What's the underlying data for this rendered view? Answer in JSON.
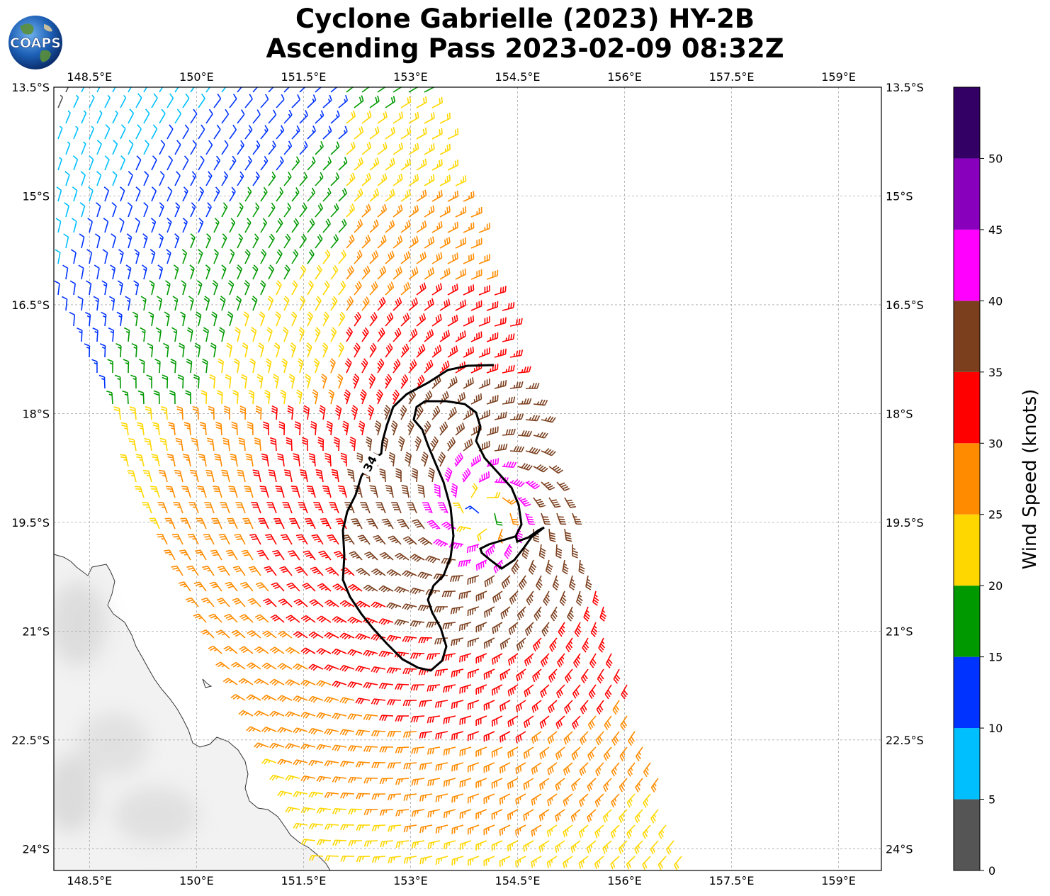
{
  "title": {
    "line1": "Cyclone Gabrielle (2023) HY-2B",
    "line2": "Ascending Pass 2023-02-09 08:32Z"
  },
  "logo": {
    "text": "COAPS",
    "icon": "globe-logo-icon"
  },
  "map": {
    "lon_range": [
      148.0,
      159.6
    ],
    "lat_range": [
      -24.3,
      -13.5
    ],
    "lon_ticks": [
      "148.5°E",
      "150°E",
      "151.5°E",
      "153°E",
      "154.5°E",
      "156°E",
      "157.5°E",
      "159°E"
    ],
    "lon_tick_values": [
      148.5,
      150,
      151.5,
      153,
      154.5,
      156,
      157.5,
      159
    ],
    "lat_ticks": [
      "13.5°S",
      "15°S",
      "16.5°S",
      "18°S",
      "19.5°S",
      "21°S",
      "22.5°S",
      "24°S"
    ],
    "lat_tick_values": [
      -13.5,
      -15,
      -16.5,
      -18,
      -19.5,
      -21,
      -22.5,
      -24
    ],
    "grid": true,
    "gridline_style": "dashed",
    "contour_label": "34",
    "storm_center": {
      "lon": 154.0,
      "lat": -19.35
    }
  },
  "colorbar": {
    "label": "Wind Speed (knots)",
    "tick_labels": [
      "0",
      "5",
      "10",
      "15",
      "20",
      "25",
      "30",
      "35",
      "40",
      "45",
      "50"
    ],
    "bounds": [
      0,
      5,
      10,
      15,
      20,
      25,
      30,
      35,
      40,
      45,
      50,
      55
    ],
    "colors": [
      "#555555",
      "#00bfff",
      "#0033ff",
      "#009900",
      "#ffd700",
      "#ff8c00",
      "#ff0000",
      "#7b3f1e",
      "#ff00ff",
      "#8800bb",
      "#330066"
    ]
  }
}
